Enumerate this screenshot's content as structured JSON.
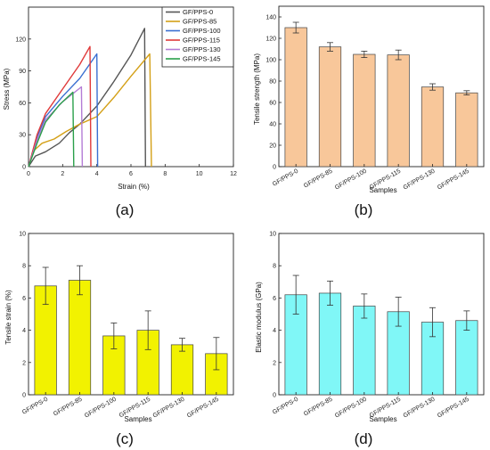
{
  "chart_data": [
    {
      "type": "line",
      "caption": "(a)",
      "xlabel": "Strain (%)",
      "ylabel": "Stress (MPa)",
      "xlim": [
        0,
        12
      ],
      "ylim": [
        0,
        150
      ],
      "xticks": [
        "0",
        "2",
        "4",
        "6",
        "8",
        "10",
        "12"
      ],
      "yticks": [
        "0",
        "30",
        "60",
        "90",
        "120"
      ],
      "legend_position": "top-right",
      "series": [
        {
          "name": "GF/PPS-0",
          "color": "#555555",
          "points": [
            [
              0,
              0
            ],
            [
              0.4,
              10
            ],
            [
              1.0,
              14
            ],
            [
              1.8,
              22
            ],
            [
              2.4,
              32
            ],
            [
              3.0,
              40
            ],
            [
              4.0,
              57
            ],
            [
              5.0,
              80
            ],
            [
              6.0,
              105
            ],
            [
              6.8,
              130
            ],
            [
              6.85,
              0
            ]
          ]
        },
        {
          "name": "GF/PPS-85",
          "color": "#d4a017",
          "points": [
            [
              0,
              0
            ],
            [
              0.3,
              15
            ],
            [
              0.8,
              22
            ],
            [
              1.5,
              26
            ],
            [
              2.2,
              33
            ],
            [
              3.0,
              40
            ],
            [
              4.0,
              47
            ],
            [
              5.0,
              65
            ],
            [
              6.0,
              85
            ],
            [
              7.1,
              106
            ],
            [
              7.2,
              0
            ]
          ]
        },
        {
          "name": "GF/PPS-100",
          "color": "#3a6fd1",
          "points": [
            [
              0,
              0
            ],
            [
              0.5,
              28
            ],
            [
              1.0,
              47
            ],
            [
              2.0,
              66
            ],
            [
              3.0,
              83
            ],
            [
              4.0,
              106
            ],
            [
              4.05,
              0
            ]
          ]
        },
        {
          "name": "GF/PPS-115",
          "color": "#e03a3a",
          "points": [
            [
              0,
              0
            ],
            [
              0.5,
              30
            ],
            [
              1.0,
              50
            ],
            [
              2.0,
              73
            ],
            [
              3.0,
              96
            ],
            [
              3.6,
              113
            ],
            [
              3.65,
              0
            ]
          ]
        },
        {
          "name": "GF/PPS-130",
          "color": "#b47cd6",
          "points": [
            [
              0,
              0
            ],
            [
              0.5,
              25
            ],
            [
              1.0,
              44
            ],
            [
              2.0,
              61
            ],
            [
              3.1,
              75
            ],
            [
              3.15,
              0
            ]
          ]
        },
        {
          "name": "GF/PPS-145",
          "color": "#2aa04a",
          "points": [
            [
              0,
              0
            ],
            [
              0.5,
              22
            ],
            [
              1.0,
              42
            ],
            [
              1.8,
              58
            ],
            [
              2.6,
              70
            ],
            [
              2.65,
              0
            ]
          ]
        }
      ]
    },
    {
      "type": "bar",
      "caption": "(b)",
      "xlabel": "Samples",
      "ylabel": "Tensile strength (MPa)",
      "ylim": [
        0,
        150
      ],
      "yticks": [
        "0",
        "20",
        "40",
        "60",
        "80",
        "100",
        "120",
        "140"
      ],
      "color": "#f8c79a",
      "categories": [
        "GF/PPS-0",
        "GF/PPS-85",
        "GF/PPS-100",
        "GF/PPS-115",
        "GF/PPS-130",
        "GF/PPS-145"
      ],
      "values": [
        130,
        112,
        105,
        104.5,
        74.5,
        69
      ],
      "errors": [
        5,
        4,
        3,
        4.5,
        3,
        2
      ]
    },
    {
      "type": "bar",
      "caption": "(c)",
      "xlabel": "Samples",
      "ylabel": "Tensile strain (%)",
      "ylim": [
        0,
        10
      ],
      "yticks": [
        "0",
        "2",
        "4",
        "6",
        "8",
        "10"
      ],
      "color": "#f2f200",
      "categories": [
        "GF/PPS-0",
        "GF/PPS-85",
        "GF/PPS-100",
        "GF/PPS-115",
        "GF/PPS-130",
        "GF/PPS-145"
      ],
      "values": [
        6.75,
        7.1,
        3.65,
        4.0,
        3.1,
        2.55
      ],
      "errors": [
        1.15,
        0.9,
        0.8,
        1.2,
        0.4,
        1.0
      ]
    },
    {
      "type": "bar",
      "caption": "(d)",
      "xlabel": "Samples",
      "ylabel": "Elastic modulus (GPa)",
      "ylim": [
        0,
        10
      ],
      "yticks": [
        "0",
        "2",
        "4",
        "6",
        "8",
        "10"
      ],
      "color": "#80f7f7",
      "categories": [
        "GF/PPS-0",
        "GF/PPS-85",
        "GF/PPS-100",
        "GF/PPS-115",
        "GF/PPS-130",
        "GF/PPS-145"
      ],
      "values": [
        6.2,
        6.3,
        5.5,
        5.15,
        4.5,
        4.6
      ],
      "errors": [
        1.2,
        0.75,
        0.75,
        0.9,
        0.9,
        0.6
      ]
    }
  ]
}
